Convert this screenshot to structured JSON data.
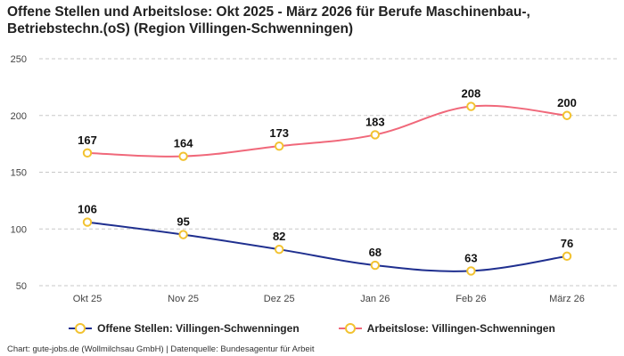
{
  "chart_data": {
    "type": "line",
    "title": "Offene Stellen und Arbeitslose: Okt 2025 - März 2026 für Berufe Maschinenbau-, Betriebstechn.(oS) (Region Villingen-Schwenningen)",
    "categories": [
      "Okt 25",
      "Nov 25",
      "Dez 25",
      "Jan 26",
      "Feb 26",
      "März 26"
    ],
    "y_ticks": [
      "50",
      "100",
      "150",
      "200",
      "250"
    ],
    "ylim": [
      50,
      250
    ],
    "grid": true,
    "legend_position": "bottom",
    "series": [
      {
        "name": "Offene Stellen: Villingen-Schwenningen",
        "color": "#1f2f8f",
        "values": [
          106,
          95,
          82,
          68,
          63,
          76
        ]
      },
      {
        "name": "Arbeitslose: Villingen-Schwenningen",
        "color": "#f0687a",
        "values": [
          167,
          164,
          173,
          183,
          208,
          200
        ]
      }
    ],
    "marker_color": "#f2c230"
  },
  "footer": "Chart: gute-jobs.de (Wollmilchsau GmbH) | Datenquelle: Bundesagentur für Arbeit"
}
